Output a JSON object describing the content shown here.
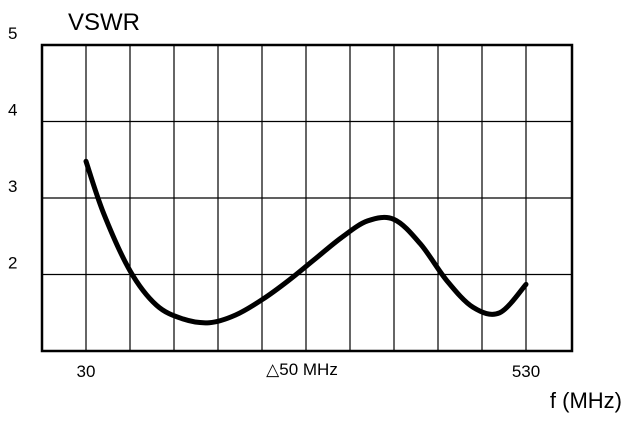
{
  "chart_data": {
    "type": "line",
    "title": "",
    "ylabel": "VSWR",
    "xlabel": "f (MHz)",
    "x_step_label": "△50 MHz",
    "xlim": [
      30,
      530
    ],
    "x_tick_labels": [
      {
        "x": 30,
        "label": "30"
      },
      {
        "x": 530,
        "label": "530"
      }
    ],
    "ylim": [
      1,
      5
    ],
    "y_ticks": [
      2,
      3,
      4,
      5
    ],
    "grid": true,
    "x_grid_step": 50,
    "series": [
      {
        "name": "",
        "color": "#000000",
        "x": [
          30,
          50,
          80,
          110,
          140,
          170,
          200,
          230,
          260,
          290,
          320,
          350,
          380,
          410,
          440,
          470,
          500,
          530
        ],
        "y": [
          3.48,
          2.8,
          2.05,
          1.6,
          1.42,
          1.37,
          1.47,
          1.67,
          1.92,
          2.2,
          2.48,
          2.7,
          2.72,
          2.4,
          1.92,
          1.57,
          1.5,
          1.87
        ]
      }
    ]
  }
}
